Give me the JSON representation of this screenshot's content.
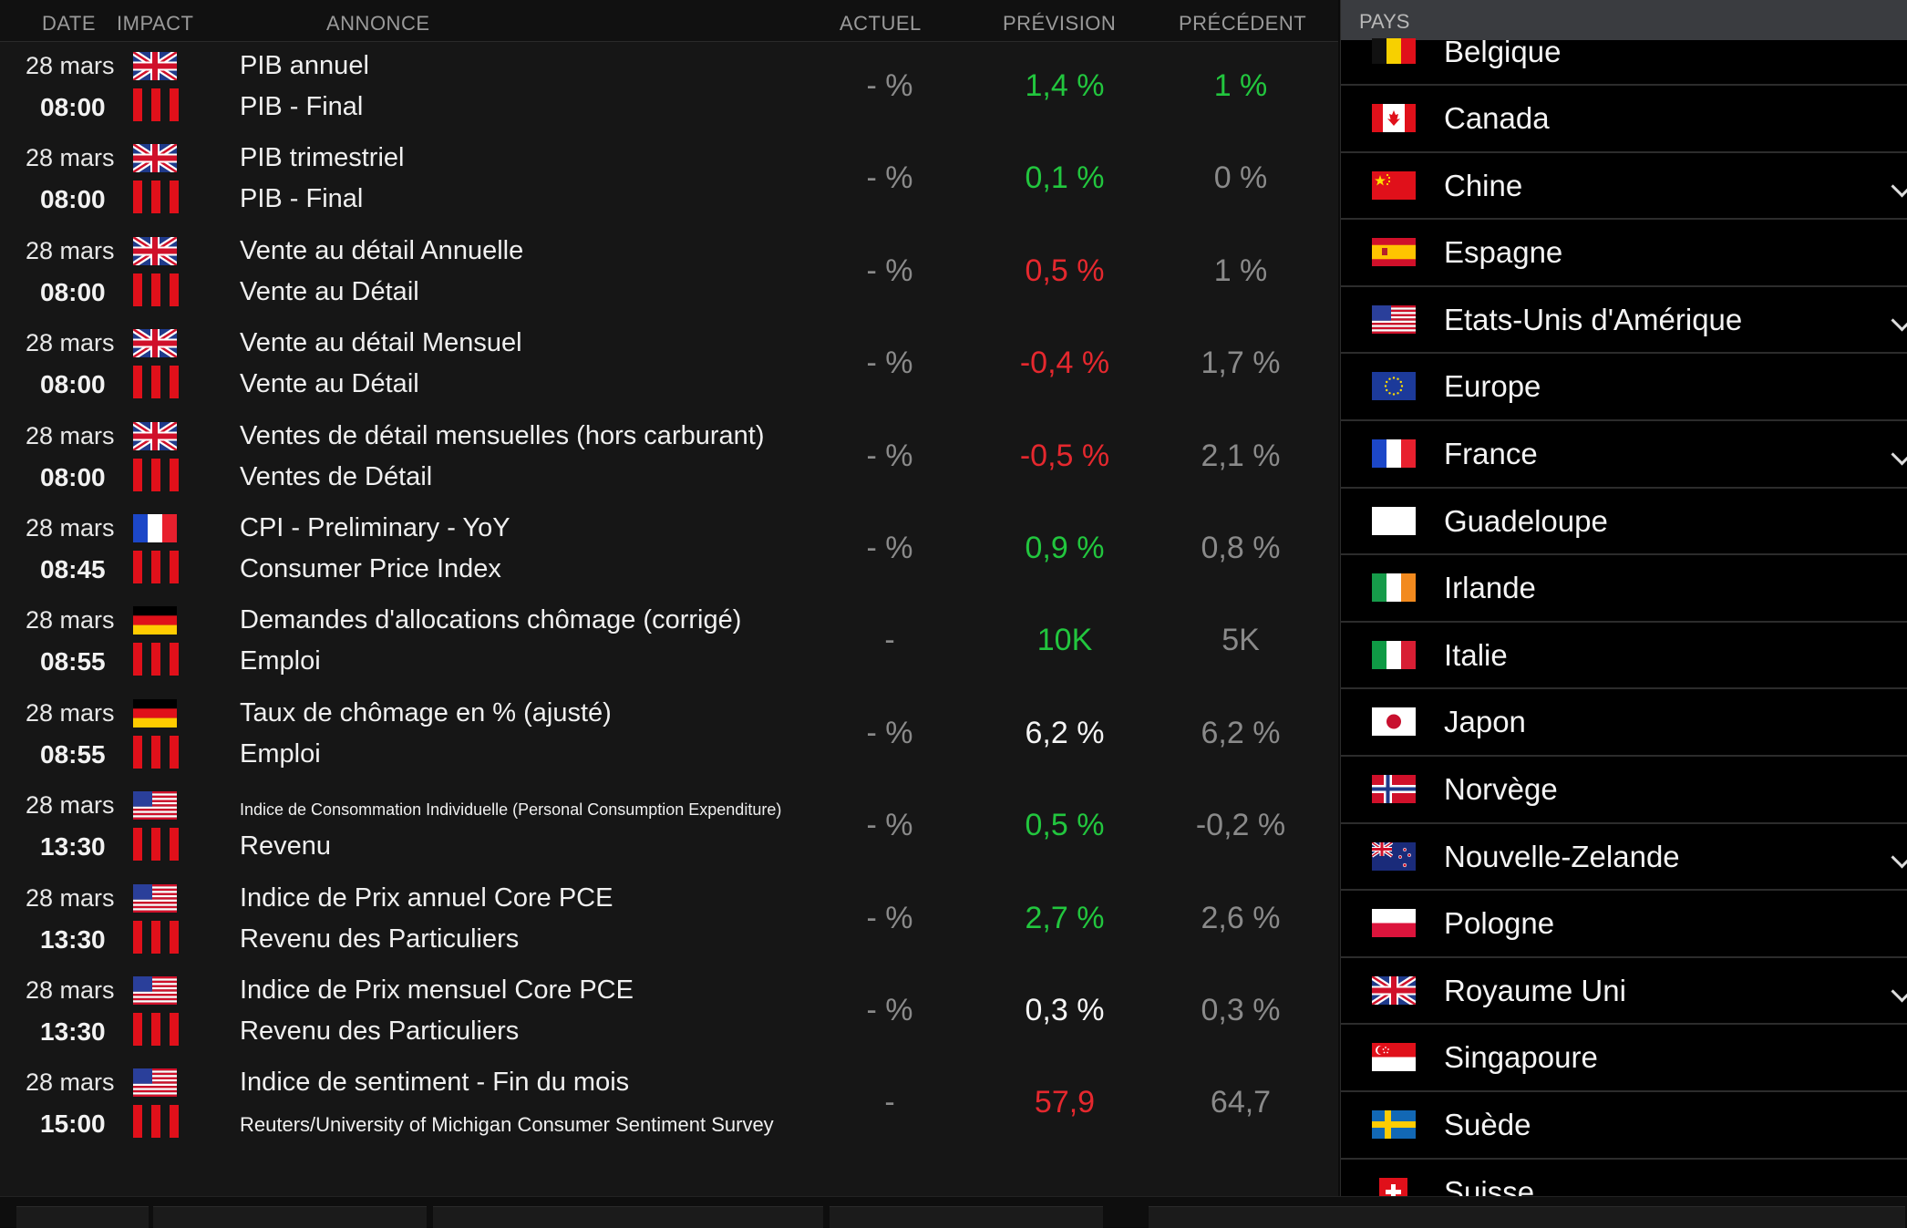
{
  "header": {
    "date": "DATE",
    "impact": "IMPACT",
    "annonce": "ANNONCE",
    "actuel": "ACTUEL",
    "prevision": "PRÉVISION",
    "precedent": "PRÉCÉDENT"
  },
  "sidebar": {
    "header": "PAYS"
  },
  "events": [
    {
      "date": "28 mars",
      "time": "08:00",
      "flag": "uk-flag-icon",
      "title": "PIB annuel",
      "category": "PIB - Final",
      "actual": "- %",
      "forecast": "1,4 %",
      "forecast_color": "green",
      "previous": "1 %",
      "previous_color": "green"
    },
    {
      "date": "28 mars",
      "time": "08:00",
      "flag": "uk-flag-icon",
      "title": "PIB trimestriel",
      "category": "PIB - Final",
      "actual": "- %",
      "forecast": "0,1 %",
      "forecast_color": "green",
      "previous": "0 %",
      "previous_color": "grey"
    },
    {
      "date": "28 mars",
      "time": "08:00",
      "flag": "uk-flag-icon",
      "title": "Vente au détail Annuelle",
      "category": "Vente au Détail",
      "actual": "- %",
      "forecast": "0,5 %",
      "forecast_color": "red",
      "previous": "1 %",
      "previous_color": "grey"
    },
    {
      "date": "28 mars",
      "time": "08:00",
      "flag": "uk-flag-icon",
      "title": "Vente au détail Mensuel",
      "category": "Vente au Détail",
      "actual": "- %",
      "forecast": "-0,4 %",
      "forecast_color": "red",
      "previous": "1,7 %",
      "previous_color": "grey"
    },
    {
      "date": "28 mars",
      "time": "08:00",
      "flag": "uk-flag-icon",
      "title": "Ventes de détail mensuelles (hors carburant)",
      "category": "Ventes de Détail",
      "actual": "- %",
      "forecast": "-0,5 %",
      "forecast_color": "red",
      "previous": "2,1 %",
      "previous_color": "grey"
    },
    {
      "date": "28 mars",
      "time": "08:45",
      "flag": "fr-flag-icon",
      "title": "CPI  - Preliminary - YoY",
      "category": "Consumer Price Index",
      "actual": "- %",
      "forecast": "0,9 %",
      "forecast_color": "green",
      "previous": "0,8 %",
      "previous_color": "grey"
    },
    {
      "date": "28 mars",
      "time": "08:55",
      "flag": "de-flag-icon",
      "title": "Demandes d'allocations chômage (corrigé)",
      "category": "Emploi",
      "actual": "-",
      "forecast": "10K",
      "forecast_color": "green",
      "previous": "5K",
      "previous_color": "grey"
    },
    {
      "date": "28 mars",
      "time": "08:55",
      "flag": "de-flag-icon",
      "title": "Taux de chômage en % (ajusté)",
      "category": "Emploi",
      "actual": "- %",
      "forecast": "6,2 %",
      "forecast_color": "white",
      "previous": "6,2 %",
      "previous_color": "grey"
    },
    {
      "date": "28 mars",
      "time": "13:30",
      "flag": "us-flag-icon",
      "title": "Indice de Consommation Individuelle (Personal Consumption Expenditure)",
      "title_small": true,
      "category": "Revenu",
      "actual": "- %",
      "forecast": "0,5 %",
      "forecast_color": "green",
      "previous": "-0,2 %",
      "previous_color": "grey"
    },
    {
      "date": "28 mars",
      "time": "13:30",
      "flag": "us-flag-icon",
      "title": "Indice de Prix annuel Core PCE",
      "category": "Revenu des Particuliers",
      "actual": "- %",
      "forecast": "2,7 %",
      "forecast_color": "green",
      "previous": "2,6 %",
      "previous_color": "grey"
    },
    {
      "date": "28 mars",
      "time": "13:30",
      "flag": "us-flag-icon",
      "title": "Indice de Prix mensuel Core PCE",
      "category": "Revenu des Particuliers",
      "actual": "- %",
      "forecast": "0,3 %",
      "forecast_color": "white",
      "previous": "0,3 %",
      "previous_color": "grey"
    },
    {
      "date": "28 mars",
      "time": "15:00",
      "flag": "us-flag-icon",
      "title": "Indice de sentiment - Fin du mois",
      "category": "Reuters/University of Michigan Consumer Sentiment Survey",
      "category_small": true,
      "actual": "-",
      "forecast": "57,9",
      "forecast_color": "red",
      "previous": "64,7",
      "previous_color": "grey"
    }
  ],
  "countries": [
    {
      "name": "Belgique",
      "flag": "be-flag-icon",
      "chevron": false
    },
    {
      "name": "Canada",
      "flag": "ca-flag-icon",
      "chevron": false
    },
    {
      "name": "Chine",
      "flag": "cn-flag-icon",
      "chevron": true
    },
    {
      "name": "Espagne",
      "flag": "es-flag-icon",
      "chevron": false
    },
    {
      "name": "Etats-Unis d'Amérique",
      "flag": "us-flag-icon",
      "chevron": true
    },
    {
      "name": "Europe",
      "flag": "eu-flag-icon",
      "chevron": false
    },
    {
      "name": "France",
      "flag": "fr-flag-icon",
      "chevron": true
    },
    {
      "name": "Guadeloupe",
      "flag": "gp-flag-icon",
      "chevron": false
    },
    {
      "name": "Irlande",
      "flag": "ie-flag-icon",
      "chevron": false
    },
    {
      "name": "Italie",
      "flag": "it-flag-icon",
      "chevron": false
    },
    {
      "name": "Japon",
      "flag": "jp-flag-icon",
      "chevron": false
    },
    {
      "name": "Norvège",
      "flag": "no-flag-icon",
      "chevron": false
    },
    {
      "name": "Nouvelle-Zelande",
      "flag": "nz-flag-icon",
      "chevron": true
    },
    {
      "name": "Pologne",
      "flag": "pl-flag-icon",
      "chevron": false
    },
    {
      "name": "Royaume Uni",
      "flag": "uk-flag-icon",
      "chevron": true
    },
    {
      "name": "Singapoure",
      "flag": "sg-flag-icon",
      "chevron": false
    },
    {
      "name": "Suède",
      "flag": "se-flag-icon",
      "chevron": false
    },
    {
      "name": "Suisse",
      "flag": "ch-flag-icon",
      "chevron": false
    }
  ],
  "colors": {
    "green": "#22c63e",
    "red": "#e5282e",
    "impact_red": "#e0101a",
    "panel_bg": "#161616",
    "sidebar_header_bg": "#3a3c40"
  }
}
